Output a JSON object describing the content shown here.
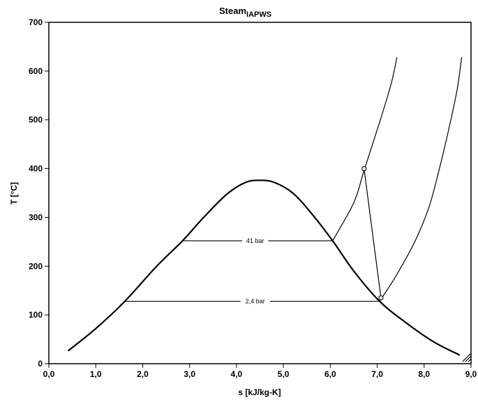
{
  "chart_data": {
    "type": "line",
    "title": "Steam",
    "title_subscript": "IAPWS",
    "xlabel": "s [kJ/kg-K]",
    "ylabel": "T [°C]",
    "xlim": [
      0,
      9
    ],
    "ylim": [
      0,
      700
    ],
    "x_ticks": [
      {
        "value": 0,
        "label": "0,0"
      },
      {
        "value": 1,
        "label": "1,0"
      },
      {
        "value": 2,
        "label": "2,0"
      },
      {
        "value": 3,
        "label": "3,0"
      },
      {
        "value": 4,
        "label": "4,0"
      },
      {
        "value": 5,
        "label": "5,0"
      },
      {
        "value": 6,
        "label": "6,0"
      },
      {
        "value": 7,
        "label": "7,0"
      },
      {
        "value": 8,
        "label": "8,0"
      },
      {
        "value": 9,
        "label": "9,0"
      }
    ],
    "y_ticks": [
      {
        "value": 0,
        "label": "0"
      },
      {
        "value": 100,
        "label": "100"
      },
      {
        "value": 200,
        "label": "200"
      },
      {
        "value": 300,
        "label": "300"
      },
      {
        "value": 400,
        "label": "400"
      },
      {
        "value": 500,
        "label": "500"
      },
      {
        "value": 600,
        "label": "600"
      },
      {
        "value": 700,
        "label": "700"
      }
    ],
    "grid": false,
    "series": [
      {
        "role": "saturation dome",
        "stroke_width": 2.2,
        "x": [
          0.42,
          1.0,
          1.62,
          2.3,
          2.85,
          3.3,
          3.8,
          4.2,
          4.5,
          4.8,
          5.2,
          5.6,
          6.05,
          6.5,
          7.05,
          7.6,
          8.2,
          8.75
        ],
        "y": [
          27,
          72,
          128,
          200,
          252,
          300,
          348,
          372,
          376,
          372,
          350,
          308,
          252,
          190,
          128,
          85,
          45,
          18
        ]
      },
      {
        "role": "41 bar isobar",
        "stroke_width": 1.2,
        "x": [
          2.85,
          6.05,
          6.5,
          6.7,
          6.9,
          7.1,
          7.3,
          7.42
        ],
        "y": [
          252,
          252,
          330,
          390,
          450,
          510,
          575,
          628
        ]
      },
      {
        "role": "2,4 bar isobar",
        "stroke_width": 1.2,
        "x": [
          1.62,
          7.05,
          7.4,
          7.8,
          8.1,
          8.3,
          8.5,
          8.7,
          8.8
        ],
        "y": [
          128,
          128,
          180,
          250,
          320,
          390,
          470,
          560,
          628
        ]
      },
      {
        "role": "turbine expansion",
        "stroke_width": 1.2,
        "x": [
          6.72,
          7.08
        ],
        "y": [
          400,
          135
        ]
      }
    ],
    "points": [
      {
        "x": 6.72,
        "y": 400
      },
      {
        "x": 7.08,
        "y": 135
      }
    ],
    "annotations": [
      {
        "text": "41 bar",
        "x": 4.4,
        "y": 252
      },
      {
        "text": "2,4 bar",
        "x": 4.4,
        "y": 128
      }
    ]
  }
}
